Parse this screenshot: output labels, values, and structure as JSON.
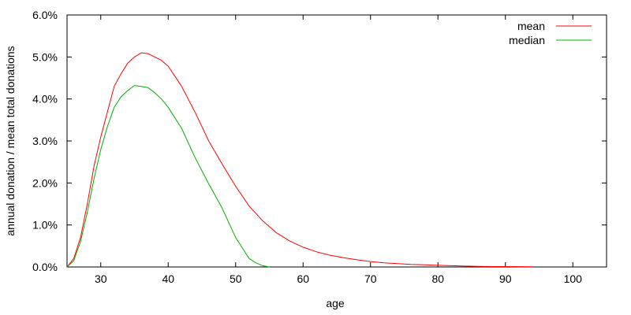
{
  "chart_data": {
    "type": "line",
    "title": "",
    "xlabel": "age",
    "ylabel": "annual donation / mean total donations",
    "xlim": [
      25,
      105
    ],
    "ylim": [
      0.0,
      6.0
    ],
    "y_unit": "%",
    "x_ticks": [
      30,
      40,
      50,
      60,
      70,
      80,
      90,
      100
    ],
    "y_ticks": [
      0.0,
      1.0,
      2.0,
      3.0,
      4.0,
      5.0,
      6.0
    ],
    "y_tick_labels": [
      "0.0%",
      "1.0%",
      "2.0%",
      "3.0%",
      "4.0%",
      "5.0%",
      "6.0%"
    ],
    "grid": false,
    "legend_position": "top-right",
    "series": [
      {
        "name": "mean",
        "color": "#ff0000",
        "x": [
          25,
          26,
          27,
          28,
          29,
          30,
          31,
          32,
          33,
          34,
          35,
          36,
          37,
          38,
          39,
          40,
          42,
          44,
          46,
          48,
          50,
          52,
          54,
          56,
          58,
          60,
          62,
          64,
          66,
          68,
          70,
          72,
          74,
          76,
          78,
          80,
          82,
          84,
          86,
          88,
          90,
          92,
          94
        ],
        "values": [
          0.0,
          0.2,
          0.7,
          1.5,
          2.4,
          3.1,
          3.7,
          4.3,
          4.6,
          4.85,
          5.0,
          5.1,
          5.08,
          5.0,
          4.92,
          4.78,
          4.3,
          3.68,
          3.0,
          2.45,
          1.92,
          1.45,
          1.1,
          0.82,
          0.62,
          0.47,
          0.36,
          0.28,
          0.22,
          0.17,
          0.13,
          0.1,
          0.08,
          0.06,
          0.05,
          0.04,
          0.03,
          0.02,
          0.015,
          0.01,
          0.01,
          0.008,
          0.005
        ]
      },
      {
        "name": "median",
        "color": "#00b000",
        "x": [
          25,
          26,
          27,
          28,
          29,
          30,
          31,
          32,
          33,
          34,
          35,
          36,
          37,
          38,
          39,
          40,
          42,
          44,
          46,
          48,
          50,
          51,
          52,
          53,
          54,
          55
        ],
        "values": [
          0.0,
          0.15,
          0.6,
          1.3,
          2.1,
          2.8,
          3.35,
          3.8,
          4.05,
          4.2,
          4.32,
          4.3,
          4.27,
          4.15,
          4.0,
          3.8,
          3.3,
          2.6,
          1.98,
          1.4,
          0.7,
          0.45,
          0.2,
          0.1,
          0.03,
          0.0
        ]
      }
    ]
  }
}
